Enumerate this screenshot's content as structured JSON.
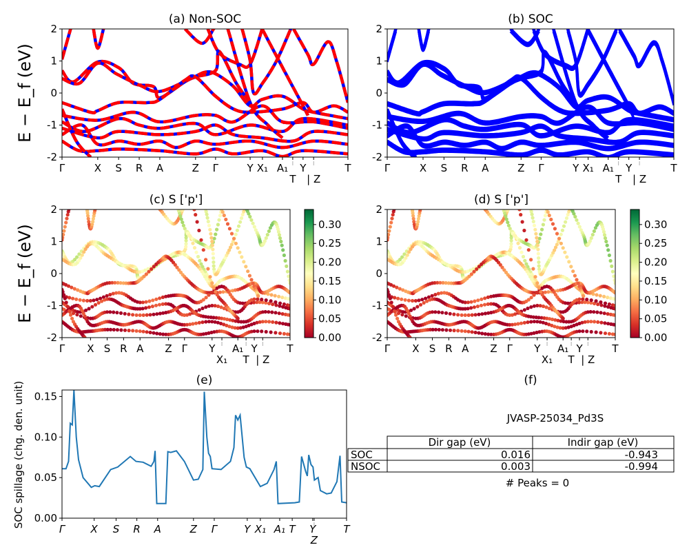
{
  "figure": {
    "band_ylabel": "E − E_f (eV)",
    "spillage_ylabel": "SOC spillage (chg. den. unit)"
  },
  "chart_data": [
    {
      "id": "a",
      "type": "line",
      "title": "(a) Non-SOC",
      "ylim": [
        -2,
        2
      ],
      "yticks": [
        -2,
        -1,
        0,
        1,
        2
      ],
      "series_colors": {
        "overlay": "#ff0000",
        "base": "#0000ff"
      },
      "style": "red dashed over blue"
    },
    {
      "id": "b",
      "type": "line",
      "title": "(b) SOC",
      "ylim": [
        -2,
        2
      ],
      "yticks": [
        -2,
        -1,
        0,
        1,
        2
      ],
      "color": "#0000ff"
    },
    {
      "id": "c",
      "type": "scatter",
      "title": "(c)  S ['p']",
      "ylim": [
        -2,
        2
      ],
      "yticks": [
        -2,
        -1,
        0,
        1,
        2
      ],
      "colorbar": {
        "cmap": "RdYlGn",
        "range": [
          0,
          0.34
        ],
        "ticks": [
          "0.00",
          "0.05",
          "0.10",
          "0.15",
          "0.20",
          "0.25",
          "0.30"
        ]
      }
    },
    {
      "id": "d",
      "type": "scatter",
      "title": "(d) S ['p']",
      "ylim": [
        -2,
        2
      ],
      "yticks": [
        -2,
        -1,
        0,
        1,
        2
      ],
      "colorbar": {
        "cmap": "RdYlGn",
        "range": [
          0,
          0.34
        ],
        "ticks": [
          "0.00",
          "0.05",
          "0.10",
          "0.15",
          "0.20",
          "0.25",
          "0.30"
        ]
      }
    },
    {
      "id": "e",
      "type": "line",
      "title": "(e)",
      "color": "#1f77b4",
      "ylabel": "SOC spillage (chg. den. unit)",
      "ylim": [
        0,
        0.158
      ],
      "yticks": [
        "0.00",
        "0.05",
        "0.10",
        "0.15"
      ],
      "kticks": [
        {
          "k": 0,
          "label": "Γ"
        },
        {
          "k": 1.13,
          "label": "X"
        },
        {
          "k": 1.9,
          "label": "S"
        },
        {
          "k": 2.63,
          "label": "R"
        },
        {
          "k": 3.36,
          "label": "A"
        },
        {
          "k": 4.62,
          "label": "Z"
        },
        {
          "k": 5.35,
          "label": "Γ"
        },
        {
          "k": 6.51,
          "label": "Y"
        },
        {
          "k": 6.97,
          "label": "X₁"
        },
        {
          "k": 7.65,
          "label": "A₁"
        },
        {
          "k": 8.09,
          "label": "T"
        },
        {
          "k": 8.81,
          "label": "Y"
        },
        {
          "k": 8.86,
          "label": "Z"
        },
        {
          "k": 10,
          "label": "T"
        }
      ],
      "points": [
        [
          0,
          0.061
        ],
        [
          0.14,
          0.061
        ],
        [
          0.23,
          0.07
        ],
        [
          0.29,
          0.117
        ],
        [
          0.36,
          0.115
        ],
        [
          0.42,
          0.158
        ],
        [
          0.5,
          0.1
        ],
        [
          0.58,
          0.072
        ],
        [
          0.74,
          0.05
        ],
        [
          1.03,
          0.038
        ],
        [
          1.15,
          0.04
        ],
        [
          1.31,
          0.039
        ],
        [
          1.71,
          0.06
        ],
        [
          1.96,
          0.063
        ],
        [
          2.4,
          0.076
        ],
        [
          2.6,
          0.07
        ],
        [
          2.85,
          0.069
        ],
        [
          3.13,
          0.064
        ],
        [
          3.23,
          0.07
        ],
        [
          3.27,
          0.083
        ],
        [
          3.33,
          0.018
        ],
        [
          3.65,
          0.018
        ],
        [
          3.72,
          0.082
        ],
        [
          3.82,
          0.081
        ],
        [
          4.02,
          0.083
        ],
        [
          4.3,
          0.07
        ],
        [
          4.62,
          0.047
        ],
        [
          4.79,
          0.048
        ],
        [
          4.95,
          0.06
        ],
        [
          5.0,
          0.156
        ],
        [
          5.09,
          0.1
        ],
        [
          5.15,
          0.08
        ],
        [
          5.21,
          0.076
        ],
        [
          5.27,
          0.061
        ],
        [
          5.59,
          0.06
        ],
        [
          5.92,
          0.07
        ],
        [
          6.04,
          0.087
        ],
        [
          6.1,
          0.127
        ],
        [
          6.18,
          0.121
        ],
        [
          6.26,
          0.127
        ],
        [
          6.4,
          0.075
        ],
        [
          6.48,
          0.063
        ],
        [
          6.6,
          0.061
        ],
        [
          6.97,
          0.039
        ],
        [
          7.21,
          0.043
        ],
        [
          7.45,
          0.06
        ],
        [
          7.53,
          0.07
        ],
        [
          7.59,
          0.018
        ],
        [
          8.18,
          0.019
        ],
        [
          8.34,
          0.02
        ],
        [
          8.42,
          0.076
        ],
        [
          8.56,
          0.058
        ],
        [
          8.62,
          0.052
        ],
        [
          8.67,
          0.078
        ],
        [
          8.75,
          0.066
        ],
        [
          8.82,
          0.063
        ],
        [
          8.87,
          0.047
        ],
        [
          9.0,
          0.05
        ],
        [
          9.08,
          0.034
        ],
        [
          9.3,
          0.03
        ],
        [
          9.46,
          0.031
        ],
        [
          9.66,
          0.045
        ],
        [
          9.77,
          0.077
        ],
        [
          9.83,
          0.02
        ],
        [
          10,
          0.019
        ]
      ]
    }
  ],
  "band_kticks": [
    {
      "k": 0,
      "label": "Γ"
    },
    {
      "k": 1.25,
      "label": "X"
    },
    {
      "k": 1.98,
      "label": "S"
    },
    {
      "k": 2.7,
      "label": "R"
    },
    {
      "k": 3.42,
      "label": "A"
    },
    {
      "k": 4.67,
      "label": "Z"
    },
    {
      "k": 5.37,
      "label": "Γ"
    },
    {
      "k": 6.58,
      "label": "Y"
    },
    {
      "k": 7.01,
      "label": "X₁"
    },
    {
      "k": 7.71,
      "label": "A₁"
    },
    {
      "k": 8.07,
      "label": "T"
    },
    {
      "k": 8.43,
      "label": "Y"
    },
    {
      "k": 8.8,
      "label": "| Z"
    },
    {
      "k": 10,
      "label": "T"
    }
  ],
  "bands": [
    {
      "w": 0.05,
      "pts": [
        [
          0,
          1.05
        ],
        [
          0.3,
          2
        ]
      ]
    },
    {
      "w": 0.08,
      "pts": [
        [
          1.1,
          2
        ],
        [
          1.25,
          1.4
        ],
        [
          1.45,
          2
        ]
      ]
    },
    {
      "w": 0.18,
      "pts": [
        [
          0,
          0.7
        ],
        [
          0.4,
          0.35
        ],
        [
          1.25,
          0.97
        ],
        [
          2.0,
          0.78
        ],
        [
          2.5,
          0.3
        ],
        [
          3.2,
          0.2
        ],
        [
          3.42,
          -0.15
        ],
        [
          4.3,
          0.35
        ],
        [
          4.67,
          0.5
        ],
        [
          5.37,
          0.7
        ],
        [
          5.5,
          1.3
        ],
        [
          6.1,
          0.3
        ],
        [
          6.58,
          -0.3
        ]
      ]
    },
    {
      "w": 0.14,
      "pts": [
        [
          0,
          0.45
        ],
        [
          0.6,
          0.3
        ],
        [
          1.25,
          0.93
        ],
        [
          1.9,
          0.6
        ],
        [
          2.7,
          0.25
        ],
        [
          3.42,
          0.05
        ],
        [
          4.5,
          0.45
        ],
        [
          5.0,
          0.65
        ],
        [
          5.37,
          0.6
        ],
        [
          6.0,
          0.2
        ],
        [
          6.58,
          -0.4
        ],
        [
          7.0,
          -0.2
        ],
        [
          7.71,
          -0.1
        ],
        [
          8.43,
          -0.5
        ],
        [
          8.8,
          -0.6
        ],
        [
          10,
          -0.8
        ]
      ]
    },
    {
      "w": 0.06,
      "pts": [
        [
          0,
          -0.3
        ],
        [
          1.0,
          -0.6
        ],
        [
          1.25,
          -0.55
        ],
        [
          1.98,
          -0.3
        ],
        [
          3.0,
          -0.3
        ],
        [
          3.42,
          -0.2
        ],
        [
          4.3,
          0.4
        ],
        [
          4.67,
          0.5
        ],
        [
          5.37,
          -0.1
        ],
        [
          6.0,
          -0.5
        ],
        [
          6.58,
          -0.6
        ],
        [
          7.71,
          -0.5
        ],
        [
          8.43,
          -0.3
        ],
        [
          8.8,
          -0.6
        ],
        [
          9.5,
          -0.4
        ],
        [
          10,
          -0.6
        ]
      ]
    },
    {
      "w": 0.03,
      "pts": [
        [
          0,
          -0.7
        ],
        [
          1.25,
          -0.85
        ],
        [
          2.5,
          -0.6
        ],
        [
          3.42,
          -0.9
        ],
        [
          4.67,
          -0.7
        ],
        [
          5.37,
          -0.7
        ],
        [
          6.0,
          -0.9
        ],
        [
          7.0,
          -0.4
        ],
        [
          7.71,
          -0.9
        ],
        [
          8.8,
          -0.9
        ],
        [
          10,
          -1.1
        ]
      ]
    },
    {
      "w": 0.02,
      "pts": [
        [
          0,
          -0.9
        ],
        [
          0.8,
          -1.2
        ],
        [
          1.98,
          -0.8
        ],
        [
          2.7,
          -1.0
        ],
        [
          3.42,
          -1.1
        ],
        [
          4.67,
          -0.95
        ],
        [
          5.37,
          -1.3
        ],
        [
          6.58,
          -1.0
        ],
        [
          7.71,
          -1.2
        ],
        [
          8.43,
          -0.8
        ],
        [
          10,
          -1.0
        ]
      ]
    },
    {
      "w": 0.02,
      "pts": [
        [
          0,
          -1.1
        ],
        [
          1.25,
          -1.4
        ],
        [
          1.98,
          -1.2
        ],
        [
          3.42,
          -1.3
        ],
        [
          4.67,
          -1.2
        ],
        [
          5.37,
          -1.0
        ],
        [
          6.0,
          -1.3
        ],
        [
          7.0,
          -1.4
        ],
        [
          8.07,
          -1.5
        ],
        [
          8.8,
          -1.2
        ],
        [
          10,
          -1.3
        ]
      ]
    },
    {
      "w": 0.02,
      "pts": [
        [
          0,
          -1.3
        ],
        [
          0.7,
          -1.0
        ],
        [
          1.25,
          -1.6
        ],
        [
          2.0,
          -1.5
        ],
        [
          2.7,
          -1.6
        ],
        [
          3.42,
          -1.5
        ],
        [
          4.0,
          -1.7
        ],
        [
          4.67,
          -1.5
        ],
        [
          5.37,
          -1.6
        ],
        [
          6.58,
          -1.5
        ],
        [
          7.71,
          -1.7
        ],
        [
          8.8,
          -1.5
        ],
        [
          10,
          -1.6
        ]
      ]
    },
    {
      "w": 0.02,
      "pts": [
        [
          0,
          -1.5
        ],
        [
          0.6,
          -1.8
        ],
        [
          1.25,
          -1.8
        ],
        [
          2.0,
          -1.75
        ],
        [
          3.42,
          -1.8
        ],
        [
          4.67,
          -1.9
        ],
        [
          5.37,
          -1.75
        ],
        [
          6.0,
          -1.9
        ],
        [
          7.0,
          -1.8
        ],
        [
          7.71,
          -1.98
        ],
        [
          8.43,
          -1.8
        ],
        [
          10,
          -1.9
        ]
      ]
    },
    {
      "w": 0.03,
      "pts": [
        [
          0,
          -0.5
        ],
        [
          0.5,
          -1.5
        ],
        [
          1.0,
          -2
        ]
      ]
    },
    {
      "w": 0.12,
      "pts": [
        [
          4.3,
          2
        ],
        [
          4.9,
          1.55
        ],
        [
          5.3,
          2
        ]
      ]
    },
    {
      "w": 0.2,
      "pts": [
        [
          5.1,
          2
        ],
        [
          5.5,
          1.25
        ],
        [
          6.2,
          0.9
        ],
        [
          6.58,
          0.9
        ],
        [
          7.0,
          2
        ]
      ]
    },
    {
      "w": 0.16,
      "pts": [
        [
          6.3,
          2
        ],
        [
          6.58,
          1.0
        ],
        [
          6.7,
          0.0
        ],
        [
          7.01,
          0.3
        ],
        [
          7.5,
          1.0
        ],
        [
          8.0,
          2
        ]
      ]
    },
    {
      "w": 0.22,
      "pts": [
        [
          8.1,
          2
        ],
        [
          8.6,
          1.2
        ],
        [
          8.8,
          0.9
        ],
        [
          9.3,
          1.6
        ],
        [
          9.6,
          1.0
        ],
        [
          10,
          -0.3
        ]
      ]
    },
    {
      "w": 0.1,
      "pts": [
        [
          7.0,
          2
        ],
        [
          7.71,
          0.8
        ],
        [
          8.43,
          -0.4
        ],
        [
          8.6,
          -0.7
        ]
      ]
    },
    {
      "w": 0.06,
      "pts": [
        [
          5.8,
          2
        ],
        [
          6.58,
          -0.3
        ],
        [
          7.2,
          -1.0
        ],
        [
          7.71,
          -1.4
        ]
      ]
    }
  ],
  "table": {
    "title": "JVASP-25034_Pd3S",
    "columns": [
      "Dir gap (eV)",
      "Indir gap (eV)"
    ],
    "rows": [
      {
        "label": "SOC",
        "dir": "0.016",
        "indir": "-0.943"
      },
      {
        "label": "NSOC",
        "dir": "0.003",
        "indir": "-0.994"
      }
    ],
    "footer": "# Peaks = 0",
    "panel_title": "(f)"
  }
}
